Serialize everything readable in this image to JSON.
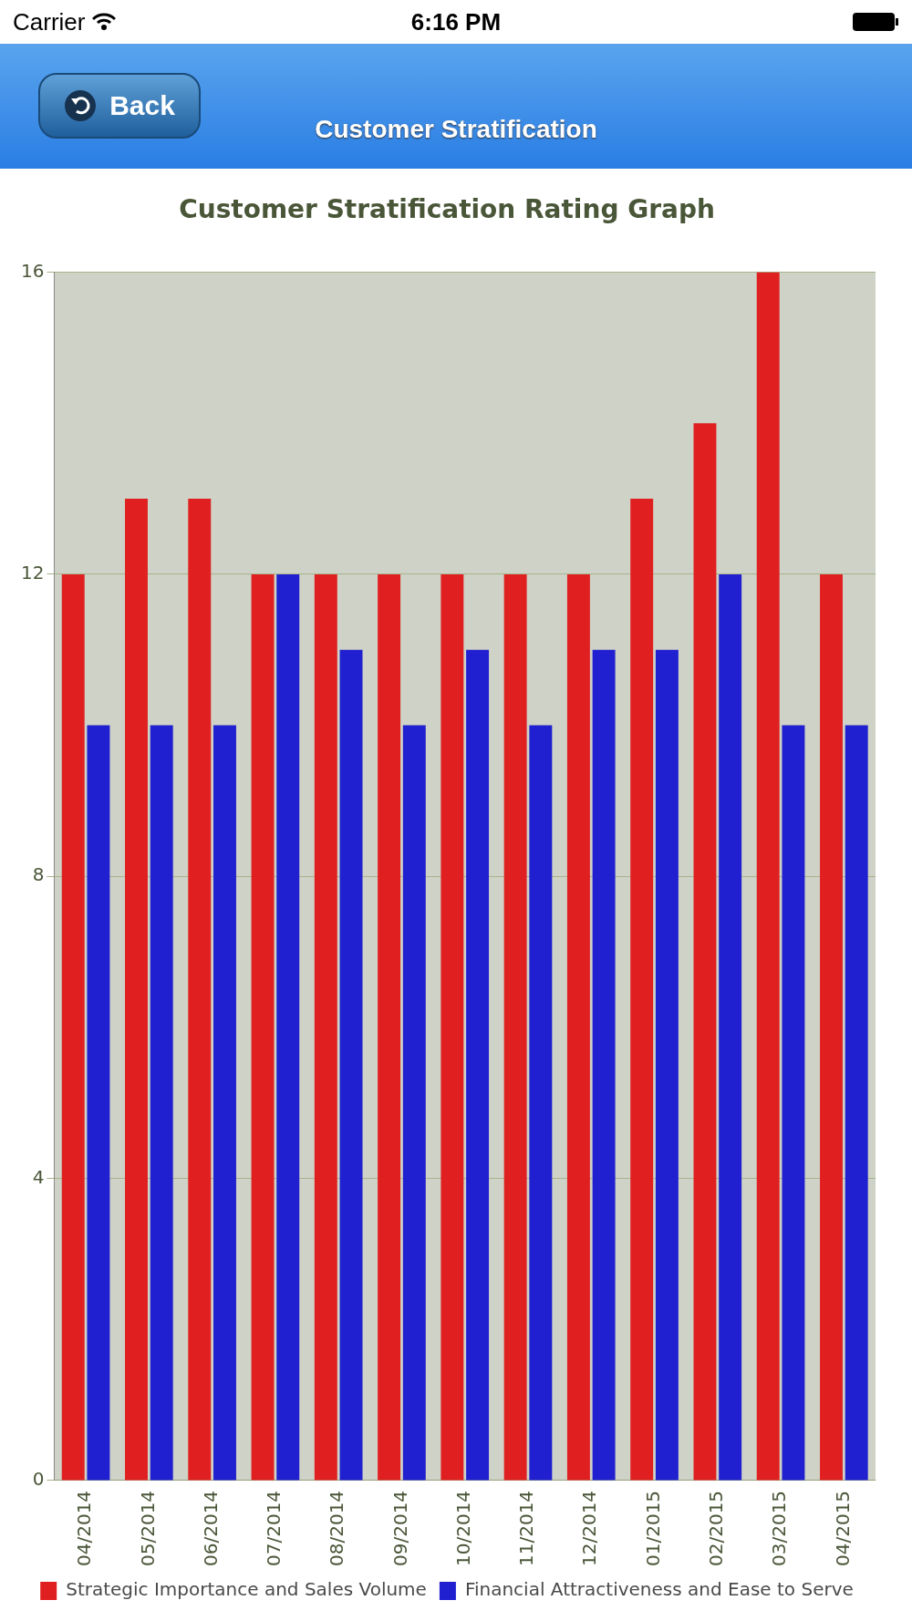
{
  "chart_data": {
    "type": "bar",
    "title": "Customer Stratification Rating Graph",
    "subtitle": "Customer Stratification",
    "annotations": [
      "Carrier",
      "6:16 PM",
      "Back"
    ],
    "categories": [
      "04/2014",
      "05/2014",
      "06/2014",
      "07/2014",
      "08/2014",
      "09/2014",
      "10/2014",
      "11/2014",
      "12/2014",
      "01/2015",
      "02/2015",
      "03/2015",
      "04/2015"
    ],
    "series": [
      {
        "name": "Strategic Importance and Sales Volume",
        "color": "#e02020",
        "values": [
          12,
          13,
          13,
          12,
          12,
          12,
          12,
          12,
          12,
          13,
          14,
          16,
          12
        ]
      },
      {
        "name": "Financial Attractiveness and Ease to Serve",
        "color": "#2020d0",
        "values": [
          10,
          10,
          10,
          12,
          11,
          10,
          11,
          10,
          11,
          11,
          12,
          10,
          10
        ]
      }
    ],
    "ylim": [
      0,
      16
    ],
    "yticks": [
      0,
      4,
      8,
      12,
      16
    ],
    "grid": "y",
    "legend": "bottom"
  }
}
